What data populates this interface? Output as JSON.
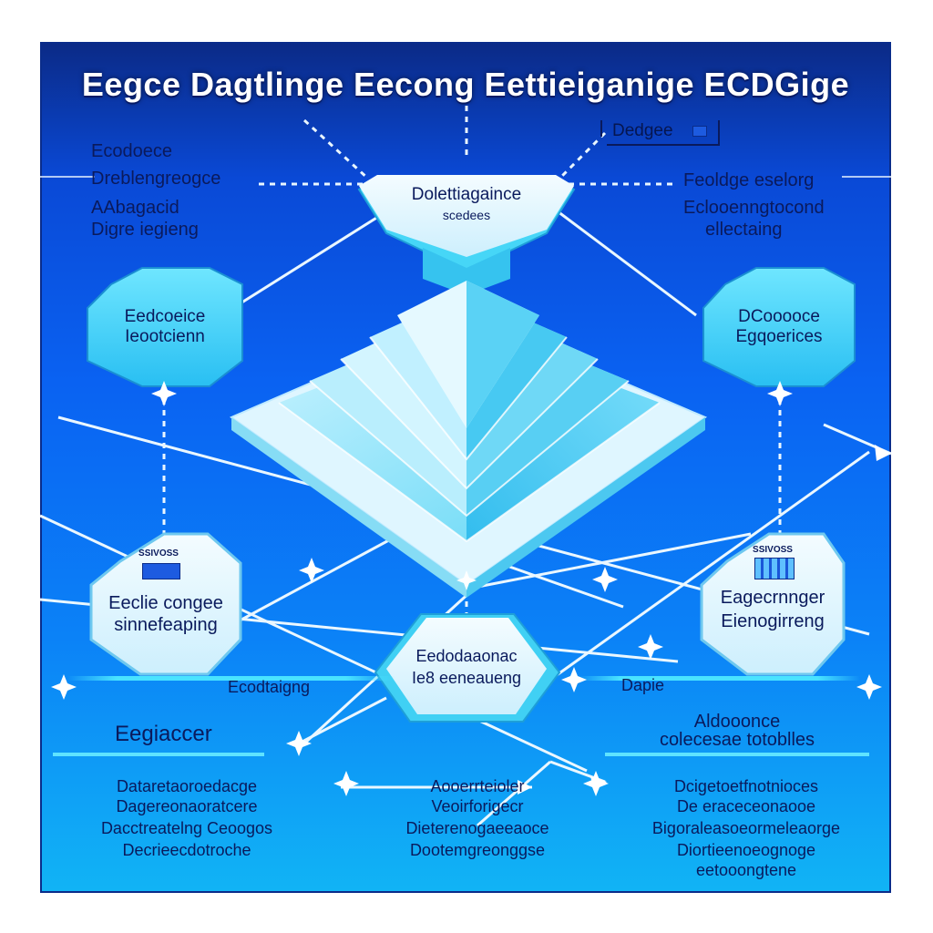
{
  "title": "Eegce Dagtlinge Eecong Eettieiganige ECDGige",
  "top_tag": "Dedgee",
  "top_left_notes": [
    "Ecodoece",
    "Dreblengreogce",
    "AAbagacid",
    "Digre iegieng"
  ],
  "top_right_notes": [
    "Feoldge eselorg",
    "Eclooenngtocond",
    "ellectaing"
  ],
  "top_center_node": [
    "Dolettiagaince",
    "scedees"
  ],
  "left_hex": [
    "Eedcoeice",
    "Ieootcienn"
  ],
  "right_hex": [
    "DCooooce",
    "Egqoerices"
  ],
  "left_lower_hex": {
    "badge": "SSIVOSS",
    "lines": [
      "Eeclie congee",
      "sinnefeaping"
    ]
  },
  "right_lower_hex": {
    "badge": "SSIVOSS",
    "lines": [
      "Eagecrnnger",
      "Eienogirreng"
    ]
  },
  "bottom_center_node": [
    "Eedodaaonac",
    "Ie8 eeneaueng"
  ],
  "left_bar_label": "Ecodtaigng",
  "right_bar_label": "Dapie",
  "left_heading": "Eegiaccer",
  "right_heading": [
    "Aldooonce",
    "colecesae totoblles"
  ],
  "left_block": [
    "Dataretaoroedacge",
    "Dagereonaoratcere",
    "Dacctreatelng Ceoogos",
    "Decrieecdotroche"
  ],
  "center_block": [
    "Aooerrteioler",
    "Veoirforigecr",
    "Dieterenogaeeaoce",
    "Dootemgreonggse"
  ],
  "right_block": [
    "Dcigetoetfnotnioces",
    "De eraceceonaooe",
    "Bigoraleasoeormeleaorge",
    "Diortieenoeognoge",
    "eetooongtene"
  ],
  "colors": {
    "bg_top": "#0b2a86",
    "bg_mid": "#0a62f2",
    "bg_bottom": "#11b4f5",
    "cyan": "#39d2f7",
    "pale": "#dff6ff",
    "ink": "#0a1a5c"
  }
}
